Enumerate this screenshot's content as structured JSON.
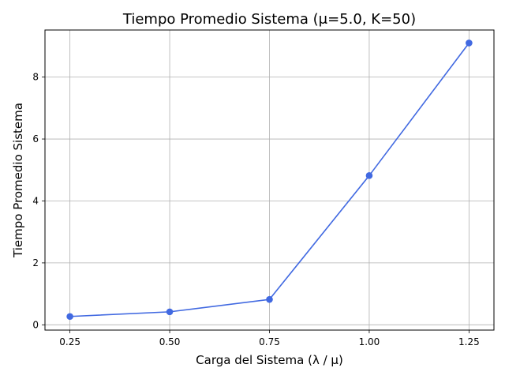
{
  "chart_data": {
    "type": "line",
    "title": "Tiempo Promedio Sistema (μ=5.0, K=50)",
    "xlabel": "Carga del Sistema (λ / μ)",
    "ylabel": "Tiempo Promedio Sistema",
    "x": [
      0.25,
      0.5,
      0.75,
      1.0,
      1.25
    ],
    "x_tick_labels": [
      "0.25",
      "0.50",
      "0.75",
      "1.00",
      "1.25"
    ],
    "y_ticks": [
      0,
      2,
      4,
      6,
      8
    ],
    "y_tick_labels": [
      "0",
      "2",
      "4",
      "6",
      "8"
    ],
    "xlim": [
      0.1875,
      1.3125
    ],
    "ylim": [
      -0.17,
      9.52
    ],
    "grid": true,
    "series": [
      {
        "values": [
          0.27,
          0.42,
          0.82,
          4.82,
          9.1
        ],
        "color": "#4169e1"
      }
    ]
  }
}
